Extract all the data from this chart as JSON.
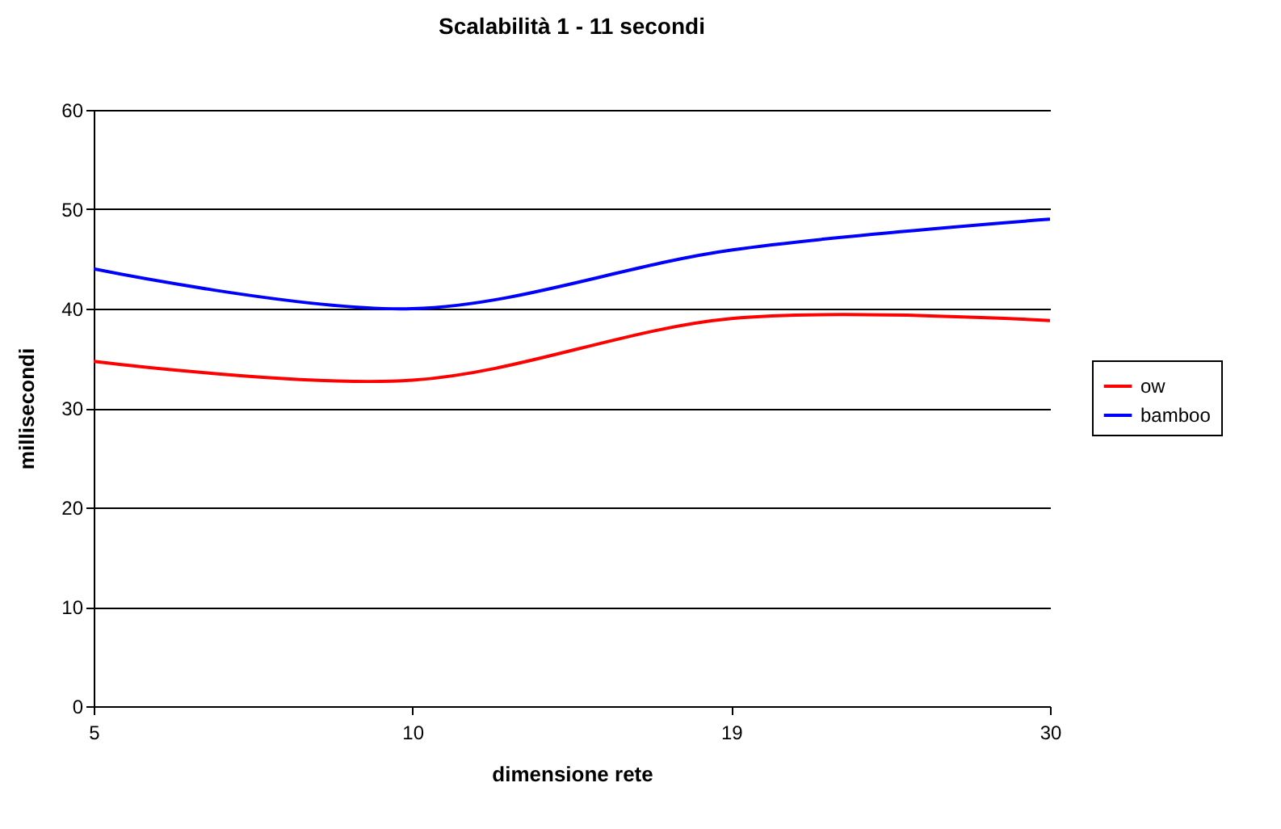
{
  "chart_data": {
    "type": "line",
    "title": "Scalabilità 1 - 11 secondi",
    "xlabel": "dimensione rete",
    "ylabel": "millisecondi",
    "categories": [
      "5",
      "10",
      "19",
      "30"
    ],
    "series": [
      {
        "name": "ow",
        "color": "#ff0000",
        "values": [
          34.7,
          32.8,
          39,
          38.8
        ]
      },
      {
        "name": "bamboo",
        "color": "#0000ff",
        "values": [
          44,
          40,
          45.9,
          49
        ]
      }
    ],
    "ylim": [
      0,
      60
    ],
    "yticks": [
      0,
      10,
      20,
      30,
      40,
      50,
      60
    ],
    "grid": "y",
    "legend": "right",
    "marker": "none",
    "line_style": "solid"
  }
}
